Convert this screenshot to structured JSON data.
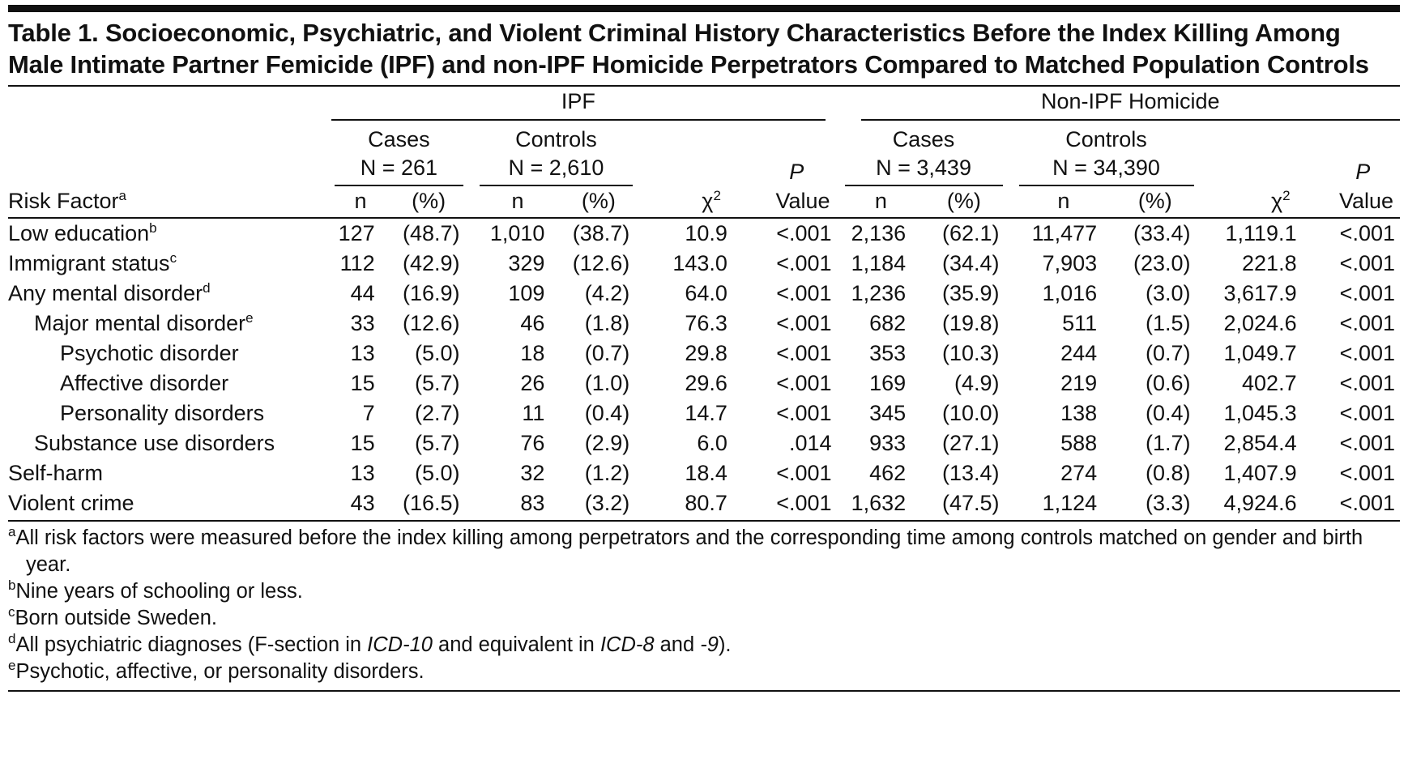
{
  "title": "Table 1. Socioeconomic, Psychiatric, and Violent Criminal History Characteristics Before the Index Killing Among Male Intimate Partner Femicide (IPF) and non-IPF Homicide Perpetrators Compared to Matched Population Controls",
  "table": {
    "risk_factor": "Risk Factor",
    "risk_factor_note": "a",
    "groups": [
      {
        "title": "IPF",
        "subgroups": [
          {
            "title": "Cases",
            "n": "N = 261",
            "cols": [
              "n",
              "(%)"
            ]
          },
          {
            "title": "Controls",
            "n": "N = 2,610",
            "cols": [
              "n",
              "(%)"
            ]
          }
        ],
        "chi": [
          "χ",
          "2"
        ],
        "p": [
          "P",
          "Value"
        ]
      },
      {
        "title": "Non-IPF Homicide",
        "subgroups": [
          {
            "title": "Cases",
            "n": "N = 3,439",
            "cols": [
              "n",
              "(%)"
            ]
          },
          {
            "title": "Controls",
            "n": "N = 34,390",
            "cols": [
              "n",
              "(%)"
            ]
          }
        ],
        "chi": [
          "χ",
          "2"
        ],
        "p": [
          "P",
          "Value"
        ]
      }
    ],
    "rows": [
      {
        "label": "Low education",
        "note": "b",
        "indent": 0,
        "cells": [
          "127",
          "(48.7)",
          "1,010",
          "(38.7)",
          "10.9",
          "<.001",
          "2,136",
          "(62.1)",
          "11,477",
          "(33.4)",
          "1,119.1",
          "<.001"
        ]
      },
      {
        "label": "Immigrant status",
        "note": "c",
        "indent": 0,
        "cells": [
          "112",
          "(42.9)",
          "329",
          "(12.6)",
          "143.0",
          "<.001",
          "1,184",
          "(34.4)",
          "7,903",
          "(23.0)",
          "221.8",
          "<.001"
        ]
      },
      {
        "label": "Any mental disorder",
        "note": "d",
        "indent": 0,
        "cells": [
          "44",
          "(16.9)",
          "109",
          "(4.2)",
          "64.0",
          "<.001",
          "1,236",
          "(35.9)",
          "1,016",
          "(3.0)",
          "3,617.9",
          "<.001"
        ]
      },
      {
        "label": "Major mental disorder",
        "note": "e",
        "indent": 1,
        "cells": [
          "33",
          "(12.6)",
          "46",
          "(1.8)",
          "76.3",
          "<.001",
          "682",
          "(19.8)",
          "511",
          "(1.5)",
          "2,024.6",
          "<.001"
        ]
      },
      {
        "label": "Psychotic disorder",
        "indent": 2,
        "cells": [
          "13",
          "(5.0)",
          "18",
          "(0.7)",
          "29.8",
          "<.001",
          "353",
          "(10.3)",
          "244",
          "(0.7)",
          "1,049.7",
          "<.001"
        ]
      },
      {
        "label": "Affective disorder",
        "indent": 2,
        "cells": [
          "15",
          "(5.7)",
          "26",
          "(1.0)",
          "29.6",
          "<.001",
          "169",
          "(4.9)",
          "219",
          "(0.6)",
          "402.7",
          "<.001"
        ]
      },
      {
        "label": "Personality disorders",
        "indent": 2,
        "cells": [
          "7",
          "(2.7)",
          "11",
          "(0.4)",
          "14.7",
          "<.001",
          "345",
          "(10.0)",
          "138",
          "(0.4)",
          "1,045.3",
          "<.001"
        ]
      },
      {
        "label": "Substance use disorders",
        "indent": 1,
        "cells": [
          "15",
          "(5.7)",
          "76",
          "(2.9)",
          "6.0",
          ".014",
          "933",
          "(27.1)",
          "588",
          "(1.7)",
          "2,854.4",
          "<.001"
        ]
      },
      {
        "label": "Self-harm",
        "indent": 0,
        "cells": [
          "13",
          "(5.0)",
          "32",
          "(1.2)",
          "18.4",
          "<.001",
          "462",
          "(13.4)",
          "274",
          "(0.8)",
          "1,407.9",
          "<.001"
        ]
      },
      {
        "label": "Violent crime",
        "indent": 0,
        "cells": [
          "43",
          "(16.5)",
          "83",
          "(3.2)",
          "80.7",
          "<.001",
          "1,632",
          "(47.5)",
          "1,124",
          "(3.3)",
          "4,924.6",
          "<.001"
        ]
      }
    ]
  },
  "footnotes": [
    {
      "marker": "a",
      "parts": [
        "All risk factors were measured before the index killing among perpetrators and the corresponding time among controls matched on gender and birth year."
      ]
    },
    {
      "marker": "b",
      "parts": [
        "Nine years of schooling or less."
      ]
    },
    {
      "marker": "c",
      "parts": [
        "Born outside Sweden."
      ]
    },
    {
      "marker": "d",
      "parts": [
        "All psychiatric diagnoses (F-section in ",
        "ICD-10",
        " and equivalent in ",
        "ICD-8",
        " and ",
        "-9",
        ")."
      ]
    },
    {
      "marker": "e",
      "parts": [
        "Psychotic, affective, or personality disorders."
      ]
    }
  ]
}
